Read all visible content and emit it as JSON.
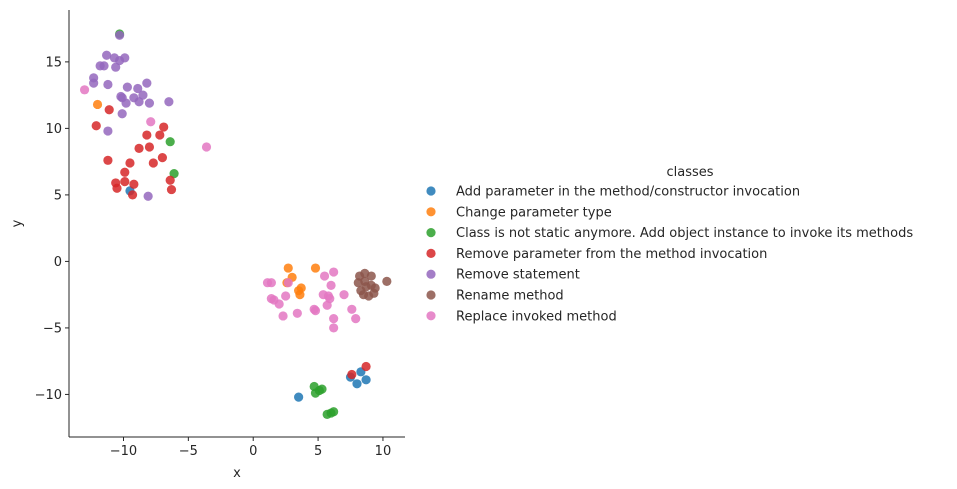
{
  "chart_data": {
    "type": "scatter",
    "xlabel": "x",
    "ylabel": "y",
    "xlim": [
      -14.2,
      11.7
    ],
    "ylim": [
      -13.2,
      18.9
    ],
    "xticks": [
      -10,
      -5,
      0,
      5,
      10
    ],
    "yticks": [
      -10,
      -5,
      0,
      5,
      10,
      15
    ],
    "grid": false,
    "legend": {
      "title": "classes",
      "placement": "right"
    },
    "series": [
      {
        "name": "Add parameter in the method/constructor invocation",
        "color": "#1f77b4",
        "points": [
          [
            -9.5,
            5.3
          ],
          [
            3.5,
            -10.2
          ],
          [
            7.5,
            -8.7
          ],
          [
            8.0,
            -9.2
          ],
          [
            8.3,
            -8.3
          ],
          [
            8.7,
            -8.9
          ]
        ]
      },
      {
        "name": "Change parameter type",
        "color": "#ff7f0e",
        "points": [
          [
            -12.0,
            11.8
          ],
          [
            2.7,
            -0.5
          ],
          [
            3.0,
            -1.2
          ],
          [
            2.6,
            -1.6
          ],
          [
            3.5,
            -2.2
          ],
          [
            3.7,
            -2.0
          ],
          [
            3.6,
            -2.5
          ],
          [
            4.8,
            -0.5
          ]
        ]
      },
      {
        "name": "Class is not static anymore. Add object instance to invoke its methods",
        "color": "#2ca02c",
        "points": [
          [
            -10.3,
            17.1
          ],
          [
            -6.4,
            9.0
          ],
          [
            -6.1,
            6.6
          ],
          [
            4.7,
            -9.4
          ],
          [
            5.1,
            -9.7
          ],
          [
            4.8,
            -9.9
          ],
          [
            5.3,
            -9.6
          ],
          [
            5.7,
            -11.5
          ],
          [
            6.0,
            -11.4
          ],
          [
            6.2,
            -11.3
          ]
        ]
      },
      {
        "name": "Remove parameter from the method invocation",
        "color": "#d62728",
        "points": [
          [
            -11.1,
            11.4
          ],
          [
            -12.1,
            10.2
          ],
          [
            -8.2,
            9.5
          ],
          [
            -8.0,
            8.6
          ],
          [
            -6.9,
            10.1
          ],
          [
            -7.2,
            9.5
          ],
          [
            -11.2,
            7.6
          ],
          [
            -9.5,
            7.4
          ],
          [
            -8.8,
            8.5
          ],
          [
            -7.7,
            7.4
          ],
          [
            -7.0,
            7.8
          ],
          [
            -9.9,
            6.7
          ],
          [
            -10.6,
            5.9
          ],
          [
            -10.5,
            5.5
          ],
          [
            -9.9,
            6.0
          ],
          [
            -9.2,
            5.8
          ],
          [
            -9.3,
            5.0
          ],
          [
            -6.4,
            6.1
          ],
          [
            -6.3,
            5.4
          ],
          [
            7.6,
            -8.5
          ],
          [
            8.7,
            -7.9
          ]
        ]
      },
      {
        "name": "Remove statement",
        "color": "#9467bd",
        "points": [
          [
            -10.3,
            17.0
          ],
          [
            -11.3,
            15.5
          ],
          [
            -10.7,
            15.3
          ],
          [
            -9.9,
            15.3
          ],
          [
            -10.3,
            15.1
          ],
          [
            -11.5,
            14.7
          ],
          [
            -11.8,
            14.7
          ],
          [
            -10.6,
            14.6
          ],
          [
            -12.3,
            13.8
          ],
          [
            -12.3,
            13.4
          ],
          [
            -11.2,
            13.3
          ],
          [
            -8.2,
            13.4
          ],
          [
            -9.7,
            13.1
          ],
          [
            -8.9,
            13.0
          ],
          [
            -8.5,
            12.5
          ],
          [
            -10.2,
            12.4
          ],
          [
            -9.2,
            12.3
          ],
          [
            -10.1,
            12.3
          ],
          [
            -8.8,
            12.0
          ],
          [
            -9.8,
            11.9
          ],
          [
            -8.0,
            11.9
          ],
          [
            -6.5,
            12.0
          ],
          [
            -10.1,
            11.1
          ],
          [
            -11.2,
            9.8
          ],
          [
            -8.1,
            4.9
          ]
        ]
      },
      {
        "name": "Rename method",
        "color": "#8c564b",
        "points": [
          [
            8.2,
            -1.1
          ],
          [
            8.6,
            -0.9
          ],
          [
            9.1,
            -1.1
          ],
          [
            8.1,
            -1.6
          ],
          [
            8.6,
            -1.5
          ],
          [
            9.1,
            -1.8
          ],
          [
            10.3,
            -1.5
          ],
          [
            8.3,
            -2.2
          ],
          [
            8.7,
            -1.9
          ],
          [
            9.4,
            -2.0
          ],
          [
            8.5,
            -2.5
          ],
          [
            8.9,
            -2.6
          ],
          [
            9.3,
            -2.4
          ]
        ]
      },
      {
        "name": "Replace invoked method",
        "color": "#e377c2",
        "points": [
          [
            -13.0,
            12.9
          ],
          [
            -7.9,
            10.5
          ],
          [
            -3.6,
            8.6
          ],
          [
            1.1,
            -1.6
          ],
          [
            1.4,
            -1.6
          ],
          [
            2.7,
            -1.6
          ],
          [
            1.4,
            -2.8
          ],
          [
            1.6,
            -2.9
          ],
          [
            2.5,
            -2.6
          ],
          [
            2.0,
            -3.2
          ],
          [
            2.3,
            -4.1
          ],
          [
            3.4,
            -3.9
          ],
          [
            4.8,
            -3.7
          ],
          [
            4.7,
            -3.6
          ],
          [
            5.4,
            -2.5
          ],
          [
            5.8,
            -2.6
          ],
          [
            5.9,
            -2.8
          ],
          [
            5.7,
            -3.3
          ],
          [
            5.5,
            -1.1
          ],
          [
            6.2,
            -0.8
          ],
          [
            6.0,
            -1.8
          ],
          [
            7.0,
            -2.5
          ],
          [
            7.6,
            -3.6
          ],
          [
            7.9,
            -4.3
          ],
          [
            6.2,
            -4.3
          ],
          [
            6.2,
            -5.0
          ]
        ]
      }
    ]
  }
}
